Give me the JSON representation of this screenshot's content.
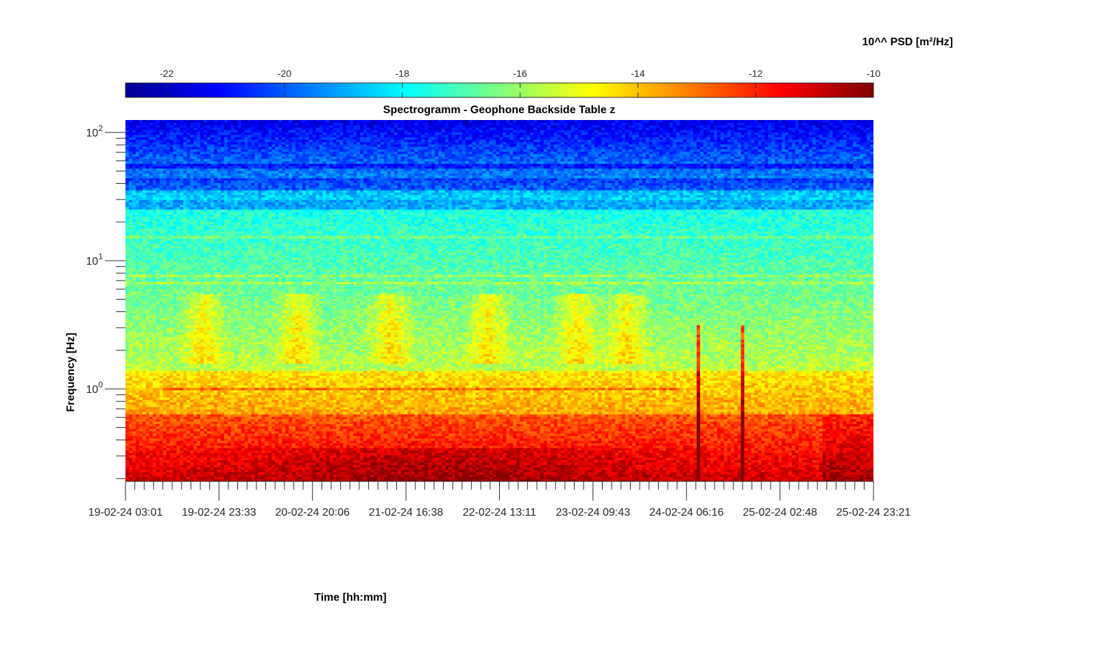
{
  "chart_data": {
    "type": "heatmap",
    "title": "Spectrogramm - Geophone Backside Table z",
    "xlabel": "Time [hh:mm]",
    "ylabel": "Frequency [Hz]",
    "colorbar_label": "10^^ PSD [m²/Hz]",
    "colormap": "jet",
    "colorbar_range": [
      -22.7,
      -10
    ],
    "colorbar_ticks": [
      "-22",
      "-20",
      "-18",
      "-16",
      "-14",
      "-12",
      "-10"
    ],
    "colorbar_tick_values": [
      -22,
      -20,
      -18,
      -16,
      -14,
      -12,
      -10
    ],
    "x_ticks": [
      "19-02-24 03:01",
      "19-02-24 23:33",
      "20-02-24 20:06",
      "21-02-24 16:38",
      "22-02-24 13:11",
      "23-02-24 09:43",
      "24-02-24 06:16",
      "25-02-24 02:48",
      "25-02-24 23:21"
    ],
    "y_scale": "log",
    "ylim": [
      0.19,
      125
    ],
    "y_ticks": [
      {
        "base": "10",
        "exp": "0",
        "value": 1
      },
      {
        "base": "10",
        "exp": "1",
        "value": 10
      },
      {
        "base": "10",
        "exp": "2",
        "value": 100
      }
    ],
    "grid": false,
    "colorbar_position": "top"
  }
}
